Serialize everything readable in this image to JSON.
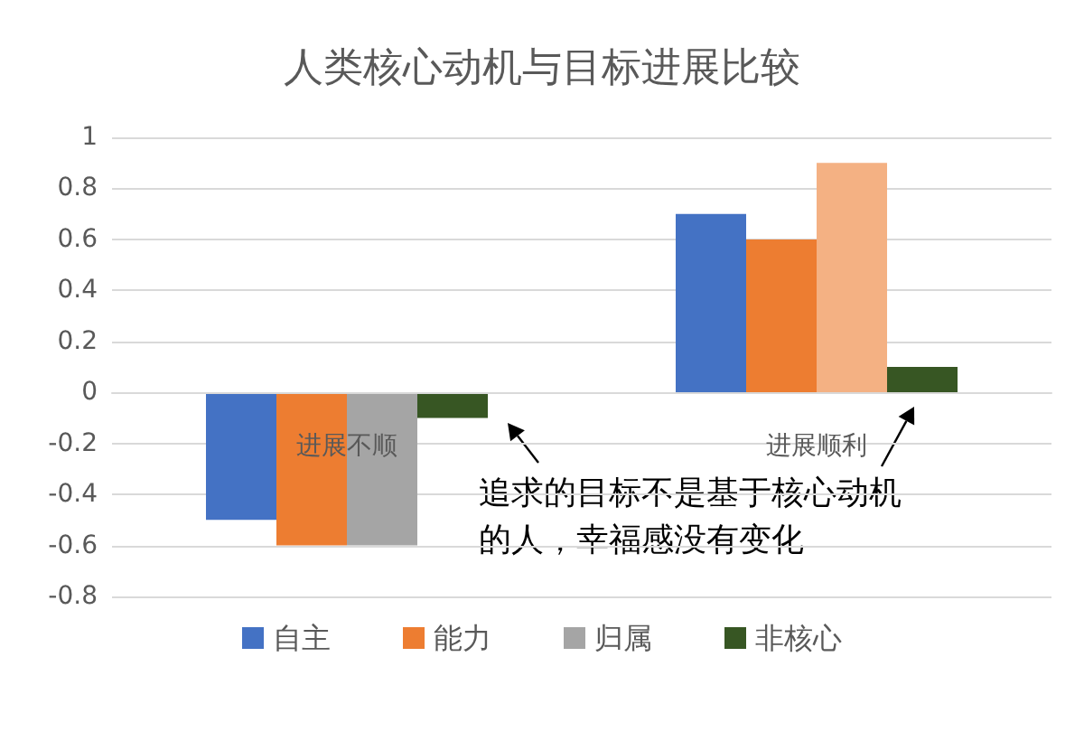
{
  "chart_data": {
    "type": "bar",
    "title": "人类核心动机与目标进展比较",
    "categories": [
      "进展不顺",
      "进展顺利"
    ],
    "series": [
      {
        "name": "自主",
        "color": "#4472c4",
        "values": [
          -0.5,
          0.7
        ]
      },
      {
        "name": "能力",
        "color": "#ed7d31",
        "values": [
          -0.6,
          0.6
        ]
      },
      {
        "name": "归属",
        "color": "#a5a5a5",
        "colors": [
          "#a5a5a5",
          "#f4b183"
        ],
        "values": [
          -0.6,
          0.9
        ]
      },
      {
        "name": "非核心",
        "color": "#375623",
        "values": [
          -0.1,
          0.1
        ]
      }
    ],
    "ylim": [
      -0.8,
      1
    ],
    "yticks": [
      -0.8,
      -0.6,
      -0.4,
      -0.2,
      0,
      0.2,
      0.4,
      0.6,
      0.8,
      1
    ],
    "grid": "y",
    "legend": "bottom",
    "annotations": [
      "追求的目标不是基于核心动机的人，幸福感没有变化"
    ]
  }
}
